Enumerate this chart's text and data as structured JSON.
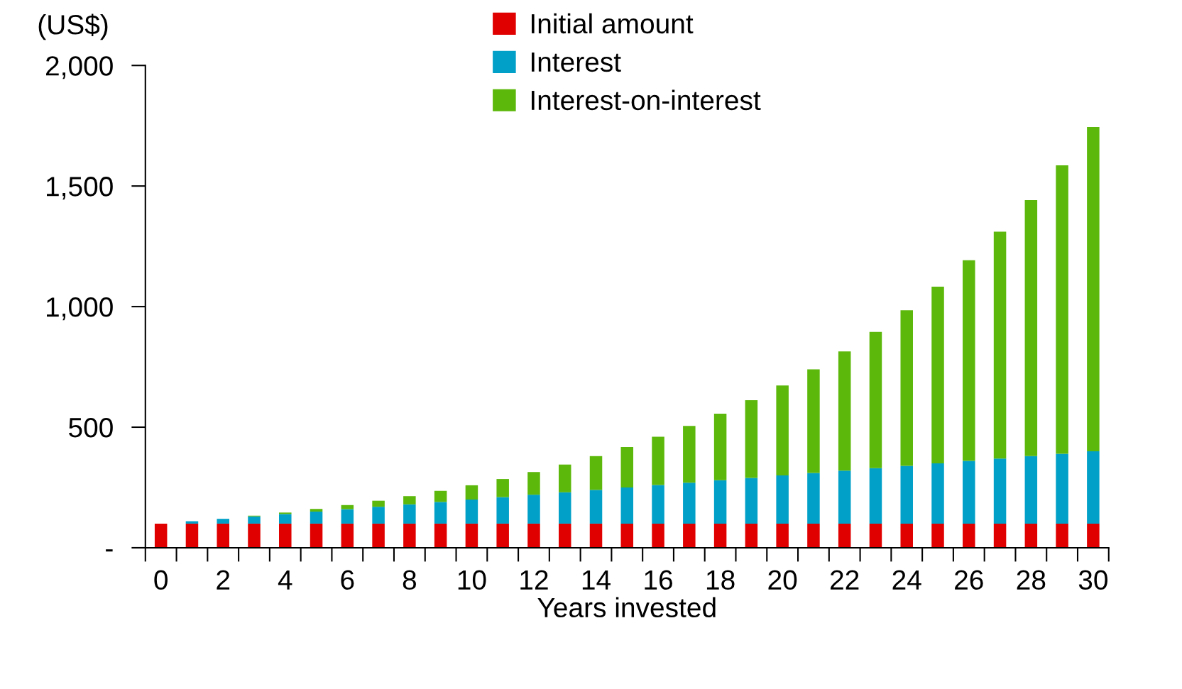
{
  "chart_data": {
    "type": "bar",
    "stacked": true,
    "xlabel": "Years invested",
    "ylabel": "(US$)",
    "categories": [
      "0",
      null,
      "2",
      null,
      "4",
      null,
      "6",
      null,
      "8",
      null,
      "10",
      null,
      "12",
      null,
      "14",
      null,
      "16",
      null,
      "18",
      null,
      "20",
      null,
      "22",
      null,
      "24",
      null,
      "26",
      null,
      "28",
      null,
      "30"
    ],
    "series": [
      {
        "name": "Initial amount",
        "color": "#e00000",
        "values": [
          100,
          100,
          100,
          100,
          100,
          100,
          100,
          100,
          100,
          100,
          100,
          100,
          100,
          100,
          100,
          100,
          100,
          100,
          100,
          100,
          100,
          100,
          100,
          100,
          100,
          100,
          100,
          100,
          100,
          100,
          100
        ]
      },
      {
        "name": "Interest",
        "color": "#00a0c8",
        "values": [
          0,
          10,
          20,
          30,
          40,
          50,
          60,
          70,
          80,
          90,
          100,
          110,
          120,
          130,
          140,
          150,
          160,
          170,
          180,
          190,
          200,
          210,
          220,
          230,
          240,
          250,
          260,
          270,
          280,
          290,
          300
        ]
      },
      {
        "name": "Interest-on-interest",
        "color": "#5cb80a",
        "values": [
          0,
          0,
          null,
          3,
          6,
          11,
          17,
          25,
          34,
          46,
          59,
          75,
          94,
          115,
          140,
          168,
          200,
          235,
          276,
          322,
          373,
          430,
          494,
          565,
          645,
          733,
          832,
          941,
          1062,
          1196,
          1345
        ]
      }
    ],
    "ylim": [
      0,
      2000
    ],
    "yticks": [
      {
        "value": 0,
        "label": "-"
      },
      {
        "value": 500,
        "label": "500"
      },
      {
        "value": 1000,
        "label": "1,000"
      },
      {
        "value": 1500,
        "label": "1,500"
      },
      {
        "value": 2000,
        "label": "2,000"
      }
    ],
    "legend": "top",
    "grid": false
  }
}
